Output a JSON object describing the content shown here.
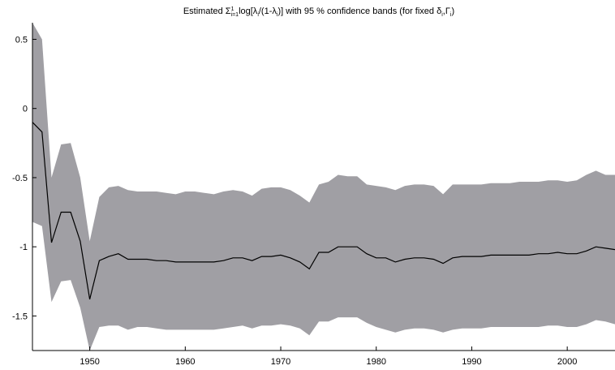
{
  "chart_data": {
    "type": "area",
    "title": {
      "prefix": "Estimated Σ",
      "sup": "1",
      "sub": "i=1",
      "mid1": "log[λ",
      "sub1": "i",
      "mid2": "/(1-λ",
      "sub2": "i",
      "mid3": ")] with 95 % confidence bands (for fixed δ",
      "sub3": "i",
      "mid4": ",Γ",
      "sub4": "i",
      "suffix": ")"
    },
    "xlabel": "",
    "ylabel": "",
    "xlim": [
      1944,
      2005
    ],
    "ylim": [
      -1.75,
      0.62
    ],
    "xticks": [
      1950,
      1960,
      1970,
      1980,
      1990,
      2000
    ],
    "yticks": [
      0.5,
      0,
      -0.5,
      -1,
      -1.5
    ],
    "ytick_labels": [
      "0.5",
      "0",
      "-0.5",
      "-1",
      "-1.5"
    ],
    "grid": false,
    "colors": {
      "band": "#a09fa4",
      "line": "#000000",
      "background": "#ffffff"
    },
    "series": [
      {
        "kind": "line",
        "x": [
          1944,
          1945,
          1946,
          1947,
          1948,
          1949,
          1950,
          1951,
          1952,
          1953,
          1954,
          1955,
          1956,
          1957,
          1958,
          1959,
          1960,
          1961,
          1962,
          1963,
          1964,
          1965,
          1966,
          1967,
          1968,
          1969,
          1970,
          1971,
          1972,
          1973,
          1974,
          1975,
          1976,
          1977,
          1978,
          1979,
          1980,
          1981,
          1982,
          1983,
          1984,
          1985,
          1986,
          1987,
          1988,
          1989,
          1990,
          1991,
          1992,
          1993,
          1994,
          1995,
          1996,
          1997,
          1998,
          1999,
          2000,
          2001,
          2002,
          2003,
          2004,
          2005
        ],
        "values": [
          -0.1,
          -0.17,
          -0.97,
          -0.75,
          -0.75,
          -0.96,
          -1.38,
          -1.1,
          -1.07,
          -1.05,
          -1.09,
          -1.09,
          -1.09,
          -1.1,
          -1.1,
          -1.11,
          -1.11,
          -1.11,
          -1.11,
          -1.11,
          -1.1,
          -1.08,
          -1.08,
          -1.1,
          -1.07,
          -1.07,
          -1.06,
          -1.08,
          -1.11,
          -1.16,
          -1.04,
          -1.04,
          -1.0,
          -1.0,
          -1.0,
          -1.05,
          -1.08,
          -1.08,
          -1.11,
          -1.09,
          -1.08,
          -1.08,
          -1.09,
          -1.12,
          -1.08,
          -1.07,
          -1.07,
          -1.07,
          -1.06,
          -1.06,
          -1.06,
          -1.06,
          -1.06,
          -1.05,
          -1.05,
          -1.04,
          -1.05,
          -1.05,
          -1.03,
          -1.0,
          -1.01,
          -1.02
        ]
      },
      {
        "kind": "band-upper",
        "x": [
          1944,
          1945,
          1946,
          1947,
          1948,
          1949,
          1950,
          1951,
          1952,
          1953,
          1954,
          1955,
          1956,
          1957,
          1958,
          1959,
          1960,
          1961,
          1962,
          1963,
          1964,
          1965,
          1966,
          1967,
          1968,
          1969,
          1970,
          1971,
          1972,
          1973,
          1974,
          1975,
          1976,
          1977,
          1978,
          1979,
          1980,
          1981,
          1982,
          1983,
          1984,
          1985,
          1986,
          1987,
          1988,
          1989,
          1990,
          1991,
          1992,
          1993,
          1994,
          1995,
          1996,
          1997,
          1998,
          1999,
          2000,
          2001,
          2002,
          2003,
          2004,
          2005
        ],
        "values": [
          0.62,
          0.5,
          -0.5,
          -0.26,
          -0.25,
          -0.5,
          -0.96,
          -0.64,
          -0.57,
          -0.56,
          -0.59,
          -0.6,
          -0.6,
          -0.6,
          -0.61,
          -0.62,
          -0.6,
          -0.6,
          -0.61,
          -0.62,
          -0.6,
          -0.59,
          -0.6,
          -0.63,
          -0.58,
          -0.57,
          -0.57,
          -0.59,
          -0.63,
          -0.68,
          -0.55,
          -0.53,
          -0.48,
          -0.49,
          -0.49,
          -0.55,
          -0.56,
          -0.57,
          -0.59,
          -0.56,
          -0.55,
          -0.55,
          -0.56,
          -0.62,
          -0.55,
          -0.55,
          -0.55,
          -0.55,
          -0.54,
          -0.54,
          -0.54,
          -0.53,
          -0.53,
          -0.53,
          -0.52,
          -0.52,
          -0.53,
          -0.52,
          -0.48,
          -0.45,
          -0.48,
          -0.48
        ]
      },
      {
        "kind": "band-lower",
        "x": [
          1944,
          1945,
          1946,
          1947,
          1948,
          1949,
          1950,
          1951,
          1952,
          1953,
          1954,
          1955,
          1956,
          1957,
          1958,
          1959,
          1960,
          1961,
          1962,
          1963,
          1964,
          1965,
          1966,
          1967,
          1968,
          1969,
          1970,
          1971,
          1972,
          1973,
          1974,
          1975,
          1976,
          1977,
          1978,
          1979,
          1980,
          1981,
          1982,
          1983,
          1984,
          1985,
          1986,
          1987,
          1988,
          1989,
          1990,
          1991,
          1992,
          1993,
          1994,
          1995,
          1996,
          1997,
          1998,
          1999,
          2000,
          2001,
          2002,
          2003,
          2004,
          2005
        ],
        "values": [
          -0.82,
          -0.85,
          -1.4,
          -1.25,
          -1.24,
          -1.44,
          -1.75,
          -1.58,
          -1.57,
          -1.57,
          -1.6,
          -1.58,
          -1.58,
          -1.59,
          -1.6,
          -1.6,
          -1.6,
          -1.6,
          -1.6,
          -1.6,
          -1.59,
          -1.58,
          -1.57,
          -1.59,
          -1.57,
          -1.57,
          -1.56,
          -1.57,
          -1.59,
          -1.64,
          -1.54,
          -1.54,
          -1.51,
          -1.51,
          -1.51,
          -1.55,
          -1.58,
          -1.6,
          -1.62,
          -1.6,
          -1.59,
          -1.59,
          -1.6,
          -1.62,
          -1.6,
          -1.59,
          -1.59,
          -1.59,
          -1.58,
          -1.58,
          -1.58,
          -1.58,
          -1.58,
          -1.58,
          -1.57,
          -1.57,
          -1.58,
          -1.58,
          -1.56,
          -1.53,
          -1.54,
          -1.56
        ]
      }
    ]
  }
}
